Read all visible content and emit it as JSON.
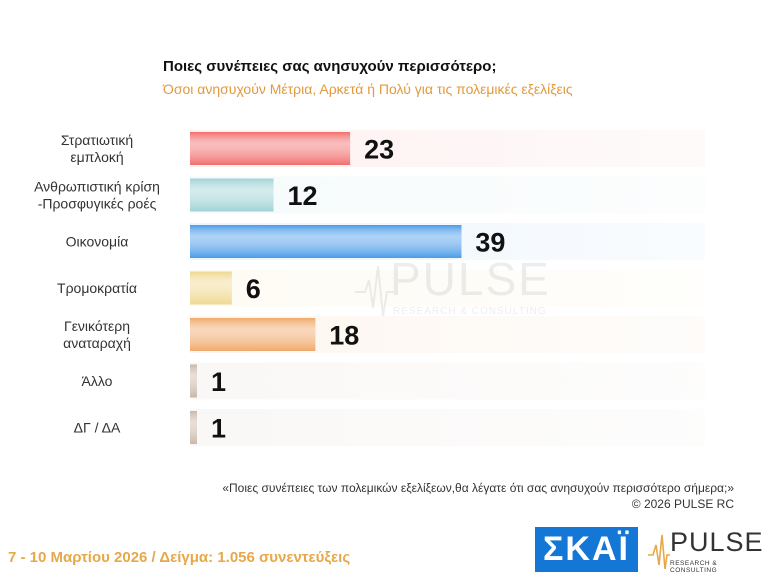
{
  "title": "Ποιες συνέπειες σας ανησυχούν περισσότερο;",
  "subtitle": "Όσοι ανησυχούν Μέτρια, Αρκετά ή Πολύ για τις πολεμικές εξελίξεις",
  "chart_data": {
    "type": "bar",
    "orientation": "horizontal",
    "categories": [
      [
        "Στρατιωτική",
        "εμπλοκή"
      ],
      [
        "Ανθρωπιστική κρίση",
        "-Προσφυγικές ροές"
      ],
      [
        "Οικονομία"
      ],
      [
        "Τρομοκρατία"
      ],
      [
        "Γενικότερη",
        "αναταραχή"
      ],
      [
        "Άλλο"
      ],
      [
        "ΔΓ / ΔΑ"
      ]
    ],
    "values": [
      23,
      12,
      39,
      6,
      18,
      1,
      1
    ],
    "colors": [
      "#f26d6d",
      "#9fd3d6",
      "#4a9be8",
      "#f0d890",
      "#f0a86a",
      "#c9b7a8",
      "#c9b7a8"
    ],
    "xlim": [
      0,
      74
    ],
    "grid": false,
    "legend": "none"
  },
  "watermark": {
    "brand": "PULSE",
    "tagline": "RESEARCH & CONSULTING"
  },
  "question_text": "«Ποιες συνέπειες των πολεμικών εξελίξεων,θα λέγατε ότι σας ανησυχούν περισσότερο σήμερα;»",
  "copyright": "©  2026  PULSE RC",
  "footer": "7 - 10  Μαρτίου 2026  /  Δείγμα:  1.056 συνεντεύξεις",
  "logos": {
    "skai": "ΣΚΑΪ",
    "pulse": "PULSE",
    "pulse_tagline": "RESEARCH & CONSULTING"
  }
}
